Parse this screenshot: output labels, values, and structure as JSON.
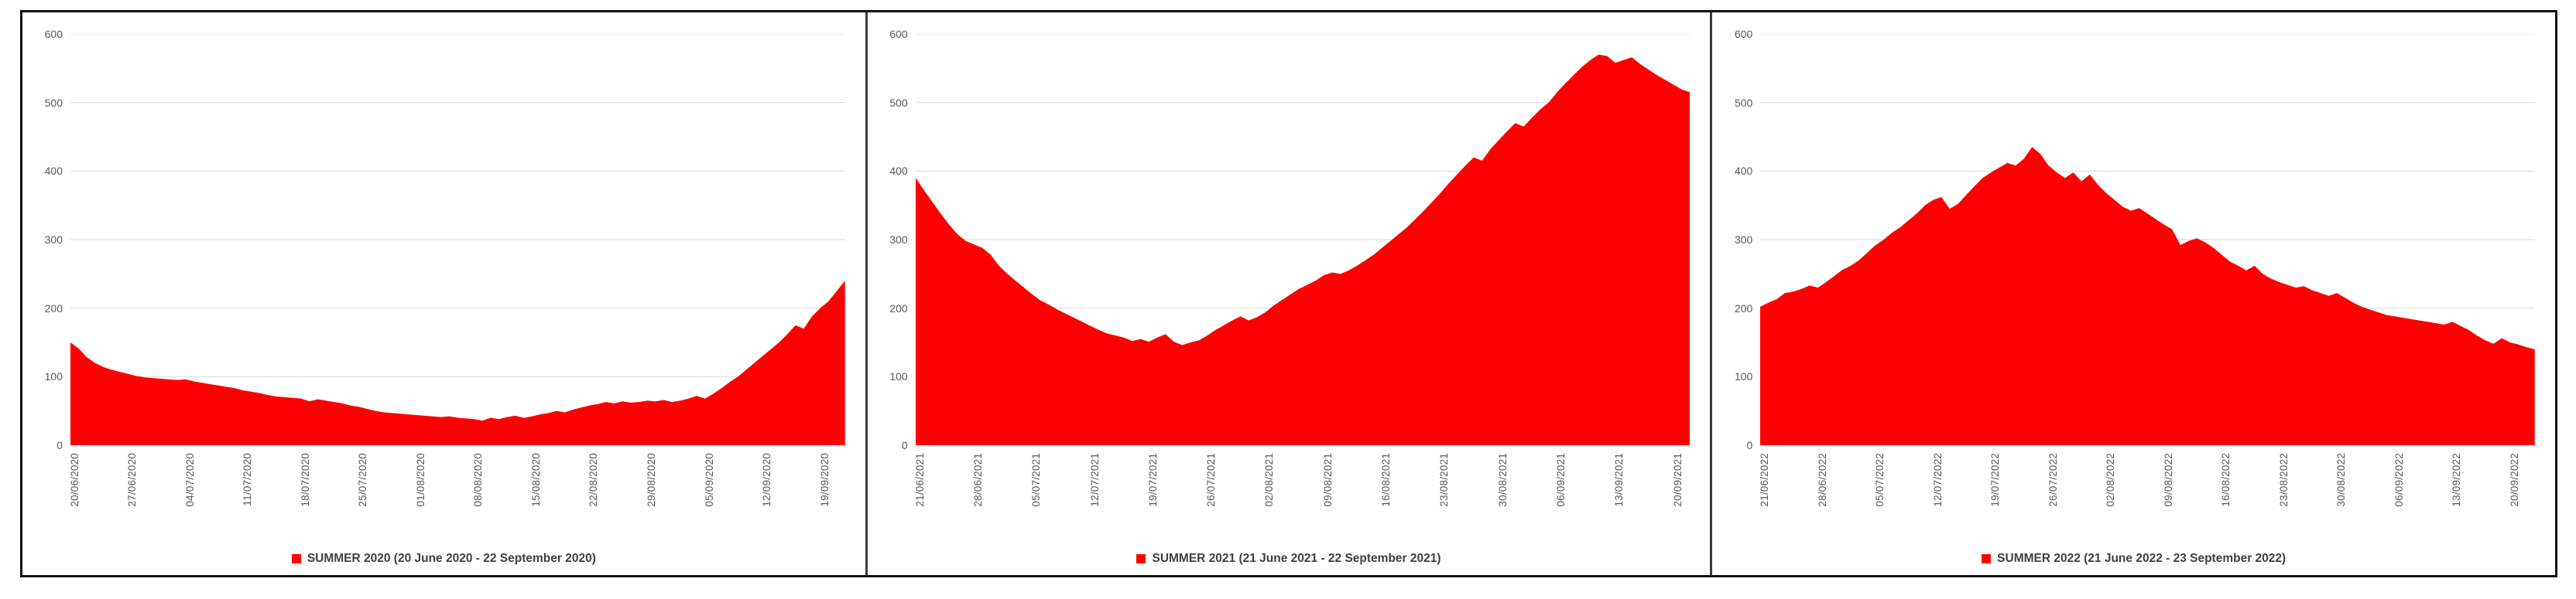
{
  "colors": {
    "area_fill": "#ff0000",
    "grid_line": "#d9d9d9",
    "axis_label": "#595959",
    "legend_text": "#3f3f3f",
    "panel_border": "#3d3d3d",
    "frame_border": "#111111",
    "background": "#ffffff"
  },
  "chart_data": [
    {
      "type": "area",
      "series_name": "SUMMER 2020",
      "legend": "SUMMER 2020 (20 June 2020 - 22 September 2020)",
      "ylim": [
        0,
        600
      ],
      "yticks": [
        0,
        100,
        200,
        300,
        400,
        500,
        600
      ],
      "grid": true,
      "legend_position": "bottom-center",
      "x_tick_interval_days": 7,
      "x_tick_labels": [
        "20/06/2020",
        "27/06/2020",
        "04/07/2020",
        "11/07/2020",
        "18/07/2020",
        "25/07/2020",
        "01/08/2020",
        "08/08/2020",
        "15/08/2020",
        "22/08/2020",
        "29/08/2020",
        "05/09/2020",
        "12/09/2020",
        "19/09/2020"
      ],
      "x_range": [
        "20/06/2020",
        "22/09/2020"
      ],
      "values": [
        150,
        141,
        128,
        120,
        114,
        110,
        107,
        104,
        101,
        99,
        98,
        97,
        96,
        95,
        96,
        93,
        91,
        89,
        87,
        85,
        83,
        80,
        78,
        76,
        73,
        71,
        70,
        69,
        68,
        64,
        67,
        65,
        63,
        61,
        58,
        56,
        53,
        50,
        48,
        47,
        46,
        45,
        44,
        43,
        42,
        41,
        42,
        40,
        39,
        38,
        36,
        40,
        38,
        41,
        43,
        40,
        42,
        45,
        47,
        50,
        48,
        52,
        55,
        58,
        60,
        63,
        61,
        64,
        62,
        63,
        65,
        64,
        66,
        63,
        65,
        68,
        72,
        68,
        75,
        83,
        92,
        100,
        110,
        120,
        130,
        140,
        150,
        162,
        175,
        170,
        188,
        200,
        210,
        225,
        240
      ]
    },
    {
      "type": "area",
      "series_name": "SUMMER 2021",
      "legend": "SUMMER 2021 (21 June 2021 - 22 September 2021)",
      "ylim": [
        0,
        600
      ],
      "yticks": [
        0,
        100,
        200,
        300,
        400,
        500,
        600
      ],
      "grid": true,
      "legend_position": "bottom-center",
      "x_tick_interval_days": 7,
      "x_tick_labels": [
        "21/06/2021",
        "28/06/2021",
        "05/07/2021",
        "12/07/2021",
        "19/07/2021",
        "26/07/2021",
        "02/08/2021",
        "09/08/2021",
        "16/08/2021",
        "23/08/2021",
        "30/08/2021",
        "06/09/2021",
        "13/09/2021",
        "20/09/2021"
      ],
      "x_range": [
        "21/06/2021",
        "22/09/2021"
      ],
      "values": [
        390,
        372,
        355,
        338,
        322,
        308,
        298,
        293,
        288,
        278,
        262,
        250,
        240,
        230,
        220,
        211,
        205,
        198,
        192,
        186,
        180,
        174,
        168,
        163,
        160,
        157,
        152,
        155,
        151,
        157,
        162,
        151,
        146,
        150,
        153,
        160,
        168,
        175,
        182,
        188,
        182,
        187,
        194,
        204,
        212,
        220,
        228,
        234,
        240,
        248,
        252,
        250,
        255,
        262,
        270,
        278,
        288,
        298,
        308,
        318,
        330,
        342,
        355,
        368,
        382,
        395,
        408,
        420,
        415,
        432,
        445,
        458,
        470,
        465,
        478,
        490,
        500,
        515,
        528,
        540,
        552,
        562,
        570,
        568,
        558,
        562,
        566,
        556,
        548,
        540,
        533,
        526,
        519,
        515
      ]
    },
    {
      "type": "area",
      "series_name": "SUMMER 2022",
      "legend": "SUMMER 2022 (21 June 2022 - 23 September 2022)",
      "ylim": [
        0,
        600
      ],
      "yticks": [
        0,
        100,
        200,
        300,
        400,
        500,
        600
      ],
      "grid": true,
      "legend_position": "bottom-center",
      "x_tick_interval_days": 7,
      "x_tick_labels": [
        "21/06/2022",
        "28/06/2022",
        "05/07/2022",
        "12/07/2022",
        "19/07/2022",
        "26/07/2022",
        "02/08/2022",
        "09/08/2022",
        "16/08/2022",
        "23/08/2022",
        "30/08/2022",
        "06/09/2022",
        "13/09/2022",
        "20/09/2022"
      ],
      "x_range": [
        "21/06/2022",
        "23/09/2022"
      ],
      "values": [
        202,
        208,
        213,
        222,
        224,
        228,
        233,
        230,
        238,
        247,
        256,
        262,
        270,
        281,
        292,
        300,
        310,
        318,
        328,
        338,
        350,
        358,
        362,
        345,
        352,
        365,
        378,
        390,
        398,
        405,
        412,
        408,
        418,
        435,
        425,
        408,
        398,
        390,
        398,
        385,
        395,
        380,
        368,
        358,
        348,
        342,
        346,
        338,
        330,
        322,
        315,
        292,
        298,
        302,
        296,
        288,
        278,
        268,
        262,
        255,
        262,
        250,
        243,
        238,
        234,
        230,
        232,
        226,
        222,
        218,
        222,
        215,
        208,
        202,
        198,
        194,
        190,
        188,
        186,
        184,
        182,
        180,
        178,
        176,
        180,
        174,
        168,
        160,
        153,
        148,
        156,
        150,
        147,
        143,
        140
      ]
    }
  ]
}
